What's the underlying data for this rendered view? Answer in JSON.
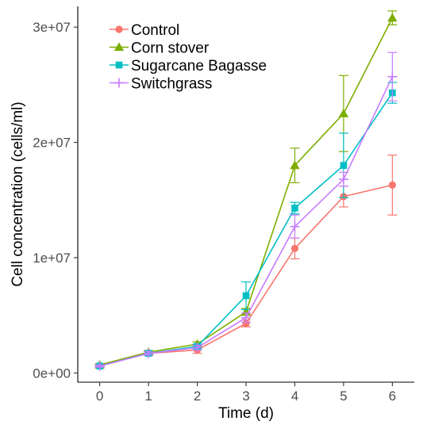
{
  "chart_data": {
    "type": "line",
    "xlabel": "Time (d)",
    "ylabel": "Cell concentration (cells/ml)",
    "x": [
      0,
      1,
      2,
      3,
      4,
      5,
      6
    ],
    "xlim": [
      -0.45,
      6.45
    ],
    "ylim": [
      -800000,
      31800000
    ],
    "x_ticks": [
      {
        "value": 0,
        "label": "0"
      },
      {
        "value": 1,
        "label": "1"
      },
      {
        "value": 2,
        "label": "2"
      },
      {
        "value": 3,
        "label": "3"
      },
      {
        "value": 4,
        "label": "4"
      },
      {
        "value": 5,
        "label": "5"
      },
      {
        "value": 6,
        "label": "6"
      }
    ],
    "y_ticks": [
      {
        "value": 0,
        "label": "0e+00"
      },
      {
        "value": 10000000,
        "label": "1e+07"
      },
      {
        "value": 20000000,
        "label": "2e+07"
      },
      {
        "value": 30000000,
        "label": "3e+07"
      }
    ],
    "grid": false,
    "legend_position": "top-left",
    "series": [
      {
        "name": "Control",
        "color": "#F8766D",
        "marker": "circle",
        "values": [
          600000,
          1700000,
          2000000,
          4300000,
          10800000,
          15300000,
          16300000
        ],
        "error": [
          100000,
          150000,
          300000,
          300000,
          900000,
          900000,
          2600000
        ]
      },
      {
        "name": "Corn stover",
        "color": "#7CAE00",
        "marker": "triangle",
        "values": [
          700000,
          1800000,
          2500000,
          5300000,
          18000000,
          22500000,
          30800000
        ],
        "error": [
          100000,
          150000,
          200000,
          300000,
          1500000,
          3300000,
          600000
        ]
      },
      {
        "name": "Sugarcane Bagasse",
        "color": "#00BFC4",
        "marker": "square",
        "values": [
          600000,
          1700000,
          2300000,
          6700000,
          14300000,
          18000000,
          24300000
        ],
        "error": [
          100000,
          150000,
          200000,
          1200000,
          500000,
          2800000,
          900000
        ]
      },
      {
        "name": "Switchgrass",
        "color": "#C77CFF",
        "marker": "plus",
        "values": [
          600000,
          1700000,
          2200000,
          4800000,
          12700000,
          16800000,
          25700000
        ],
        "error": [
          100000,
          150000,
          200000,
          400000,
          1000000,
          600000,
          2100000
        ]
      }
    ]
  }
}
